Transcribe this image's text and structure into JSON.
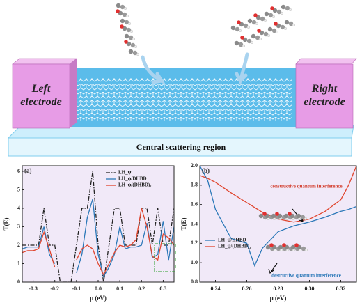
{
  "device": {
    "left_label": "Left electrode",
    "right_label": "Right electrode",
    "region_label": "Central scattering region"
  },
  "chart_data": [
    {
      "type": "line",
      "panel_label": "(a)",
      "x_label": "μ (eV)",
      "y_label": "T(E)",
      "x": [
        -0.35,
        -0.325,
        -0.3,
        -0.275,
        -0.25,
        -0.225,
        -0.2,
        -0.175,
        -0.15,
        -0.125,
        -0.1,
        -0.075,
        -0.05,
        -0.025,
        0,
        0.025,
        0.05,
        0.075,
        0.1,
        0.125,
        0.15,
        0.175,
        0.2,
        0.225,
        0.25,
        0.275,
        0.3,
        0.325,
        0.35
      ],
      "series": [
        {
          "name": "LH_ψ",
          "color": "#222222",
          "linestyle": "dashdot",
          "values": [
            2,
            2,
            2,
            2,
            4,
            2,
            2,
            0,
            0,
            0,
            2,
            4,
            4,
            6,
            2,
            0,
            2,
            4,
            4,
            2,
            2,
            2,
            4,
            4,
            2,
            4,
            2,
            2,
            4
          ]
        },
        {
          "name": "LH_ψ/DHBD",
          "color": "#2b78b8",
          "linestyle": "solid",
          "values": [
            1.8,
            1.9,
            1.9,
            1.9,
            3.0,
            1.5,
            1.0,
            null,
            null,
            null,
            0.5,
            1.5,
            3.5,
            4.5,
            1.5,
            0.3,
            0.8,
            1.5,
            3.0,
            1.8,
            1.9,
            1.9,
            2.0,
            3.2,
            1.3,
            1.5,
            3.3,
            1.2,
            3.0
          ]
        },
        {
          "name": "LH_ψ/(DHBD)₂",
          "color": "#e0452e",
          "linestyle": "solid",
          "values": [
            1.6,
            1.7,
            1.7,
            1.8,
            2.7,
            1.8,
            0.8,
            null,
            null,
            null,
            1.2,
            1.8,
            2.0,
            1.8,
            1.0,
            0.4,
            1.0,
            1.6,
            2.0,
            1.9,
            2.0,
            2.3,
            4.0,
            3.0,
            1.4,
            1.2,
            2.6,
            2.4,
            2.0
          ]
        }
      ],
      "xlim": [
        -0.35,
        0.35
      ],
      "xticks": [
        -0.3,
        -0.2,
        -0.1,
        {
          "value": 0,
          "label": "0.0"
        },
        0.1,
        0.2,
        0.3
      ],
      "ylim": [
        0,
        6.3
      ],
      "yticks": [
        0,
        1,
        2,
        3,
        4,
        5,
        6
      ],
      "grid": false,
      "legend": "upper right",
      "background": "#f1e9f8"
    },
    {
      "type": "line",
      "panel_label": "(b)",
      "x_label": "μ (eV)",
      "y_label": "T(E)",
      "x": [
        0.23,
        0.235,
        0.24,
        0.25,
        0.26,
        0.265,
        0.27,
        0.28,
        0.29,
        0.3,
        0.31,
        0.32,
        0.325,
        0.33
      ],
      "series": [
        {
          "name": "LH_ψ/DHBD",
          "color": "#2b78b8",
          "linestyle": "solid",
          "values": [
            2.0,
            1.85,
            1.55,
            1.25,
            1.2,
            0.97,
            1.15,
            1.32,
            1.38,
            1.42,
            1.47,
            1.53,
            1.55,
            1.58
          ]
        },
        {
          "name": "LH_ψ/(DHBD)₂",
          "color": "#e0452e",
          "linestyle": "solid",
          "values": [
            1.9,
            1.87,
            1.83,
            1.72,
            1.62,
            1.57,
            1.52,
            1.45,
            1.42,
            1.45,
            1.53,
            1.65,
            1.8,
            2.0
          ]
        }
      ],
      "xlim": [
        0.23,
        0.33
      ],
      "xticks": [
        0.24,
        0.26,
        0.28,
        {
          "value": 0.3,
          "label": "0.30"
        },
        0.32
      ],
      "ylim": [
        0.8,
        2.0
      ],
      "yticks": [
        0.8,
        {
          "value": 1.0,
          "label": "1.0"
        },
        1.2,
        1.4,
        1.6,
        1.8,
        {
          "value": 2.0,
          "label": "2.0"
        }
      ],
      "grid": false,
      "legend": "lower left",
      "background": "#f1e9f8",
      "annotations": [
        "constructive quantum interference",
        "destructive quantum interference"
      ]
    }
  ]
}
